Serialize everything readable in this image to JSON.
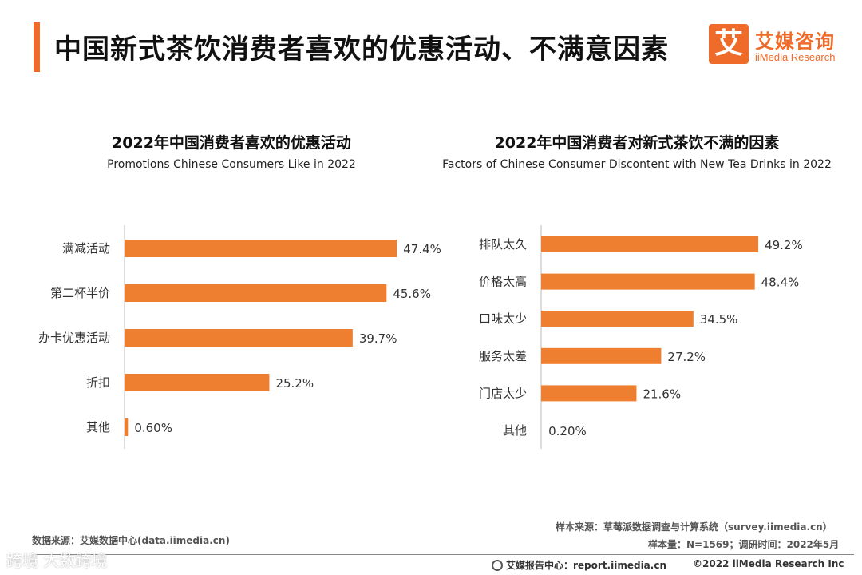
{
  "header": {
    "title": "中国新式茶饮消费者喜欢的优惠活动、不满意因素",
    "logo_mark": "艾",
    "logo_cn": "艾媒咨询",
    "logo_en": "iiMedia Research"
  },
  "colors": {
    "accent": "#EF6B29",
    "bar": "#EE7F31",
    "axis": "#bbbbbb"
  },
  "chart_data": [
    {
      "type": "bar",
      "orientation": "horizontal",
      "title": "2022年中国消费者喜欢的优惠活动",
      "subtitle": "Promotions Chinese Consumers Like in 2022",
      "categories": [
        "满减活动",
        "第二杯半价",
        "办卡优惠活动",
        "折扣",
        "其他"
      ],
      "values": [
        47.4,
        45.6,
        39.7,
        25.2,
        0.6
      ],
      "value_labels": [
        "47.4%",
        "45.6%",
        "39.7%",
        "25.2%",
        "0.60%"
      ],
      "unit": "%",
      "xlim": [
        0,
        50
      ]
    },
    {
      "type": "bar",
      "orientation": "horizontal",
      "title": "2022年中国消费者对新式茶饮不满的因素",
      "subtitle": "Factors of Chinese Consumer Discontent with New Tea Drinks in 2022",
      "categories": [
        "排队太久",
        "价格太高",
        "口味太少",
        "服务太差",
        "门店太少",
        "其他"
      ],
      "values": [
        49.2,
        48.4,
        34.5,
        27.2,
        21.6,
        0.2
      ],
      "value_labels": [
        "49.2%",
        "48.4%",
        "34.5%",
        "27.2%",
        "21.6%",
        "0.20%"
      ],
      "unit": "%",
      "xlim": [
        0,
        50
      ]
    }
  ],
  "footer": {
    "data_source": "数据来源：艾媒数据中心(data.iimedia.cn)",
    "sample_source": "样本来源：草莓派数据调查与计算系统（survey.iimedia.cn）",
    "sample_size": "样本量：N=1569；调研时间：2022年5月",
    "report_center": "艾媒报告中心：report.iimedia.cn",
    "copyright": "©2022  iiMedia Research  Inc",
    "watermark": "跨境 大数跨境"
  }
}
